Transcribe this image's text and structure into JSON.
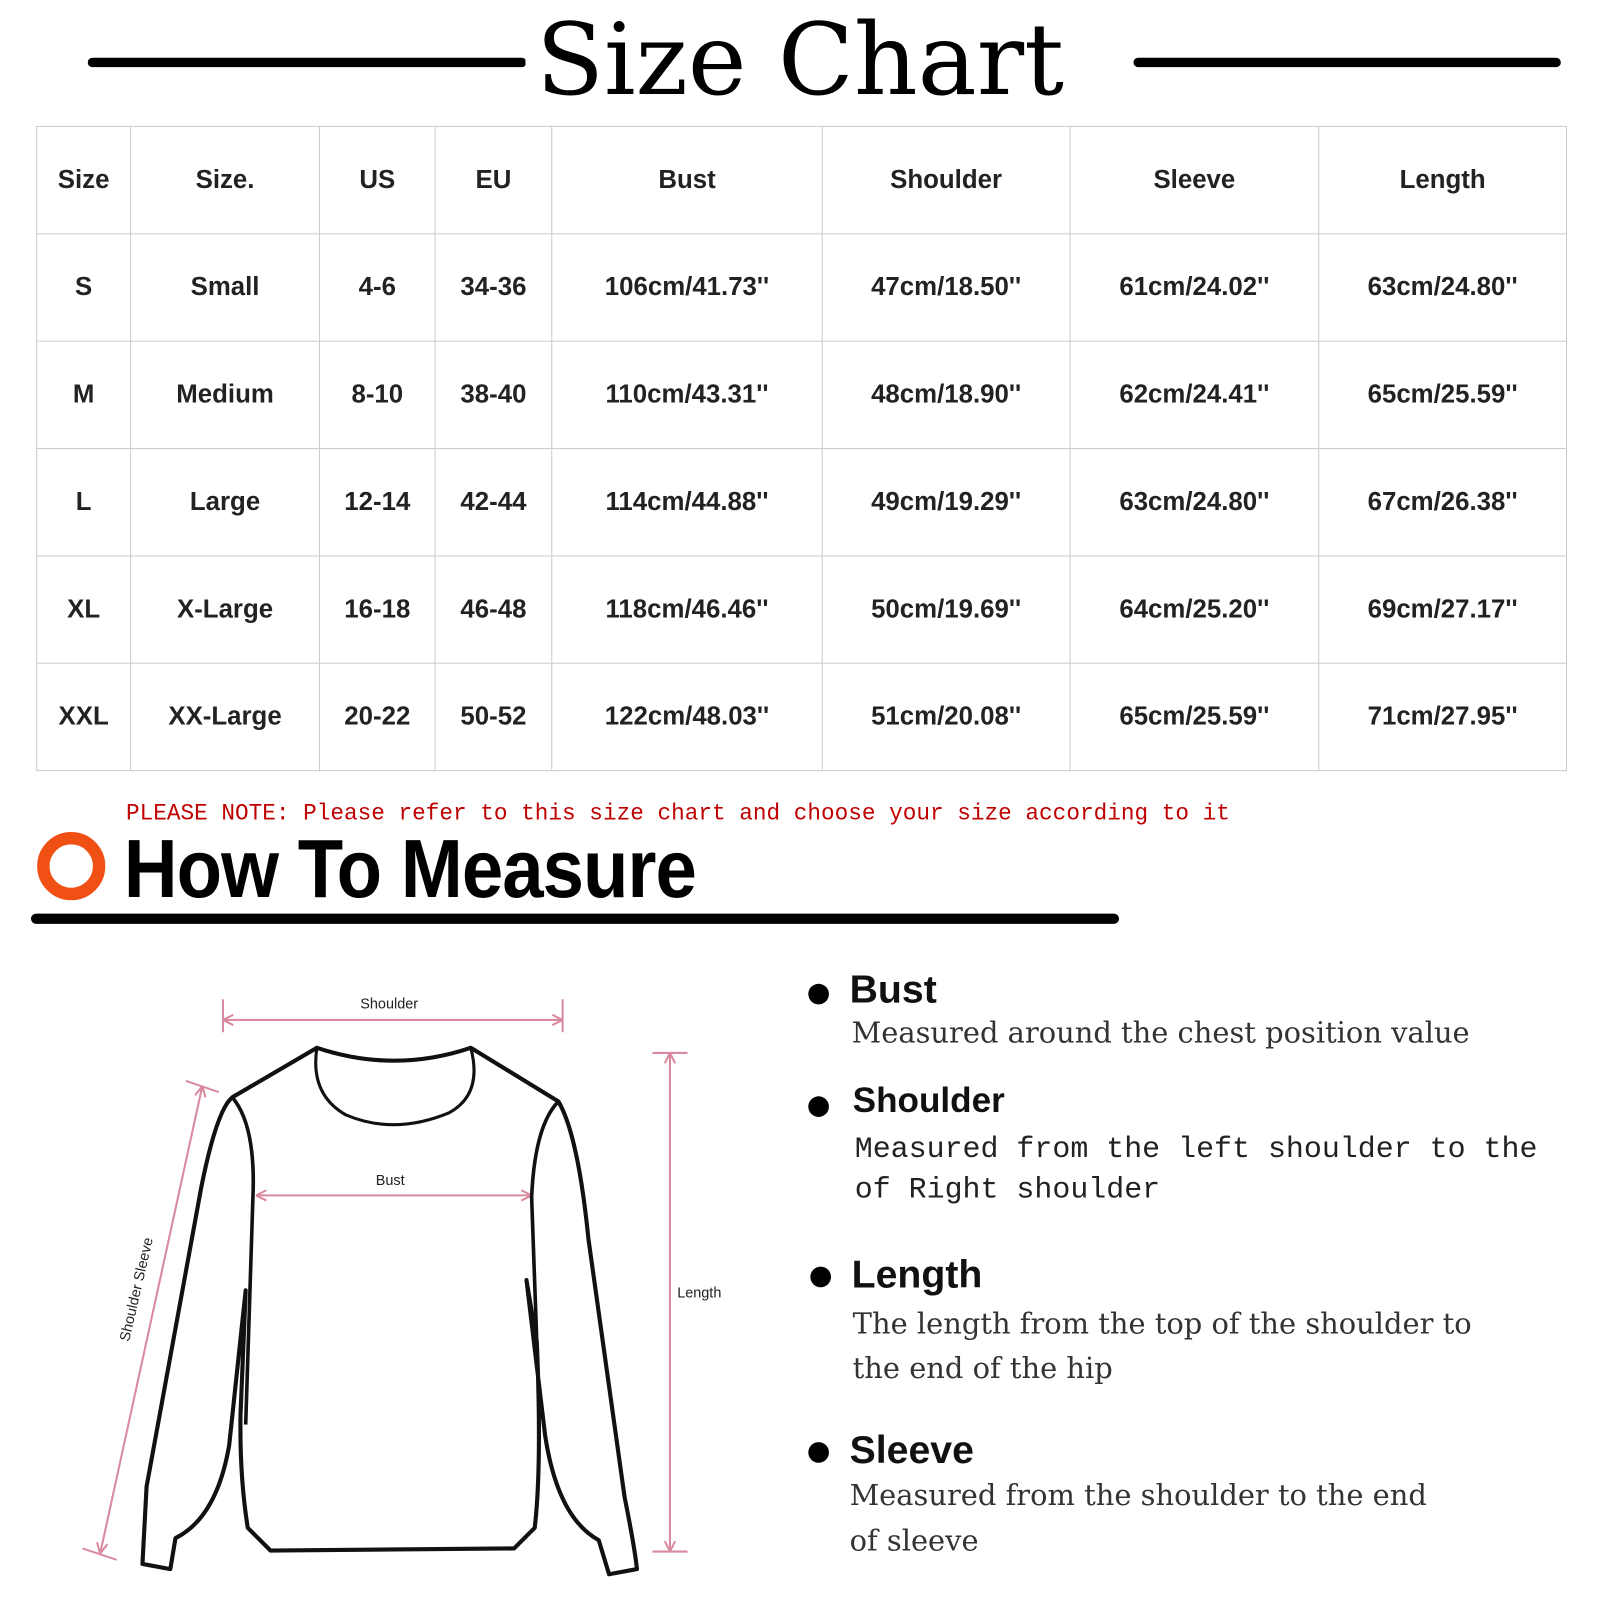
{
  "title": "Size Chart",
  "table": {
    "headers": [
      "Size",
      "Size.",
      "US",
      "EU",
      "Bust",
      "Shoulder",
      "Sleeve",
      "Length"
    ],
    "rows": [
      [
        "S",
        "Small",
        "4-6",
        "34-36",
        "106cm/41.73''",
        "47cm/18.50''",
        "61cm/24.02''",
        "63cm/24.80''"
      ],
      [
        "M",
        "Medium",
        "8-10",
        "38-40",
        "110cm/43.31''",
        "48cm/18.90''",
        "62cm/24.41''",
        "65cm/25.59''"
      ],
      [
        "L",
        "Large",
        "12-14",
        "42-44",
        "114cm/44.88''",
        "49cm/19.29''",
        "63cm/24.80''",
        "67cm/26.38''"
      ],
      [
        "XL",
        "X-Large",
        "16-18",
        "46-48",
        "118cm/46.46''",
        "50cm/19.69''",
        "64cm/25.20''",
        "69cm/27.17''"
      ],
      [
        "XXL",
        "XX-Large",
        "20-22",
        "50-52",
        "122cm/48.03''",
        "51cm/20.08''",
        "65cm/25.59''",
        "71cm/27.95''"
      ]
    ]
  },
  "note": "PLEASE NOTE: Please refer to this size chart and choose your size according to it",
  "how_to": {
    "title": "How To Measure",
    "accent_color": "#f05014",
    "diagram_labels": {
      "shoulder": "Shoulder",
      "bust": "Bust",
      "length": "Length",
      "sleeve": "Shoulder Sleeve"
    },
    "items": [
      {
        "name": "Bust",
        "lines": [
          "Measured around the chest position value"
        ]
      },
      {
        "name": "Shoulder",
        "lines": [
          "Measured from the left shoulder to the",
          "of Right shoulder"
        ]
      },
      {
        "name": "Length",
        "lines": [
          "The length from the top of the shoulder to",
          "the end of the hip"
        ]
      },
      {
        "name": "Sleeve",
        "lines": [
          "Measured from the shoulder to the end",
          "of sleeve"
        ]
      }
    ]
  }
}
